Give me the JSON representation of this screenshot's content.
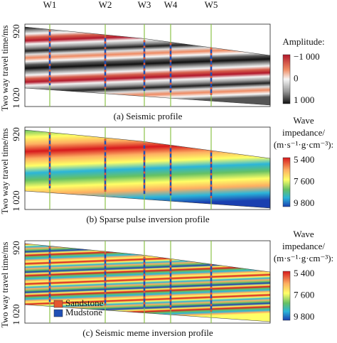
{
  "wells": [
    "W1",
    "W2",
    "W3",
    "W4",
    "W5"
  ],
  "panels": [
    {
      "y_axis_label": "Two way travel time/ms",
      "y_ticks": [
        "920",
        "1 020"
      ],
      "colorbar": {
        "title": [
          "Amplitude:"
        ],
        "ticks": [
          "−1 000",
          "0",
          "1 000"
        ]
      },
      "caption": "(a) Seismic profile"
    },
    {
      "y_axis_label": "Two way travel time/ms",
      "y_ticks": [
        "920",
        "1 020"
      ],
      "colorbar": {
        "title": [
          "Wave",
          "impedance/",
          "(m·s⁻¹·g·cm⁻³):"
        ],
        "ticks": [
          "5 400",
          "7 600",
          "9 800"
        ]
      },
      "caption": "(b) Sparse pulse inversion profile"
    },
    {
      "y_axis_label": "Two way travel time/ms",
      "y_ticks": [
        "920",
        "1 020"
      ],
      "colorbar": {
        "title": [
          "Wave",
          "impedance/",
          "(m·s⁻¹·g·cm⁻³):"
        ],
        "ticks": [
          "5 400",
          "7 600",
          "9 800"
        ]
      },
      "legend": [
        "Sandstone",
        "Mudstone"
      ],
      "caption": "(c) Seismic meme inversion profile"
    }
  ]
}
